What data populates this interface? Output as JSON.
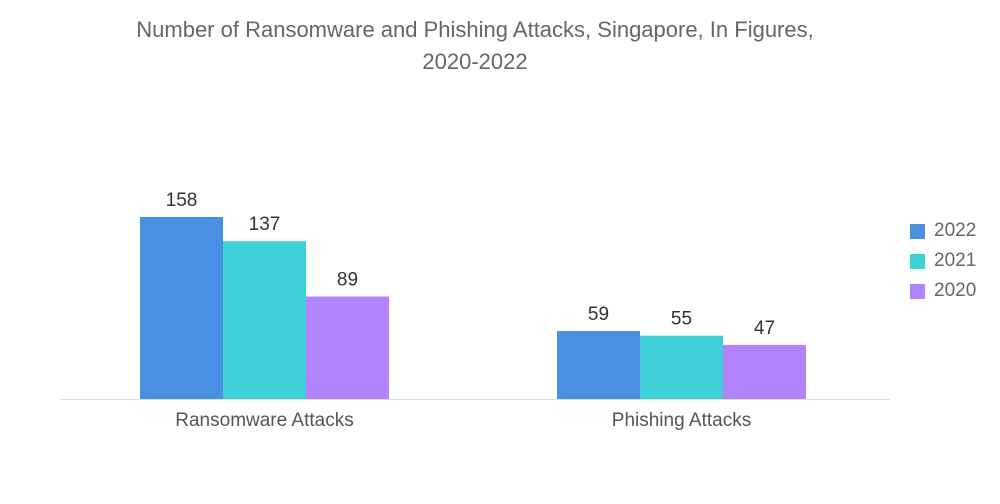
{
  "chart_data": {
    "type": "bar",
    "title_lines": [
      "Number of Ransomware and Phishing Attacks, Singapore, In Figures,",
      "2020-2022"
    ],
    "categories": [
      "Ransomware Attacks",
      "Phishing Attacks"
    ],
    "series": [
      {
        "name": "2022",
        "color": "#4a90e2",
        "values": [
          158,
          59
        ]
      },
      {
        "name": "2021",
        "color": "#3fd1da",
        "values": [
          137,
          55
        ]
      },
      {
        "name": "2020",
        "color": "#b184fc",
        "values": [
          89,
          47
        ]
      }
    ],
    "xlabel": "",
    "ylabel": "",
    "ylim": [
      0,
      158
    ],
    "grid": false,
    "legend_position": "right"
  }
}
